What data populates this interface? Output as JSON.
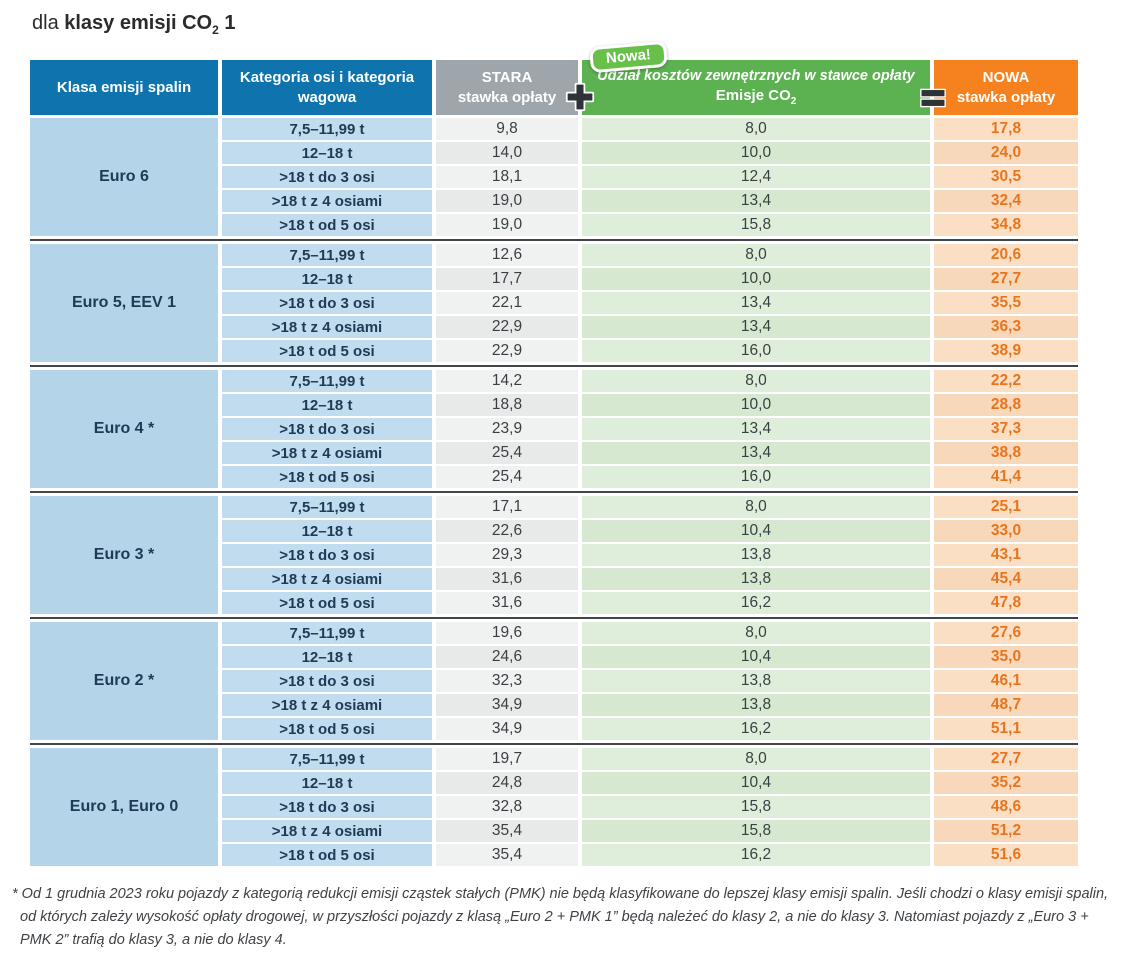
{
  "title": {
    "prefix": "dla ",
    "bold_text": "klasy emisji CO",
    "subscript": "2",
    "bold_suffix": " 1"
  },
  "header": {
    "col_class": "Klasa emisji spalin",
    "col_category": "Kategoria osi i kategoria wagowa",
    "col_old_line1": "STARA",
    "col_old_line2": "stawka opłaty",
    "plus_icon": "plus",
    "badge": "Nowa!",
    "col_share_line1": "Udział kosztów zewnętrznych w stawce opłaty",
    "col_share_line2": "Emisje CO",
    "col_share_sub": "2",
    "equals_icon": "equals",
    "col_new_line1": "NOWA",
    "col_new_line2": "stawka opłaty"
  },
  "colors": {
    "header_blue": "#0f74ad",
    "header_gray": "#9ea5ab",
    "header_green": "#5cb150",
    "header_orange": "#f5821f",
    "badge_green": "#68bf49",
    "new_rate_text": "#e8751d"
  },
  "chart_data": {
    "type": "table",
    "title": "dla klasy emisji CO2 1",
    "columns": [
      "Klasa emisji spalin",
      "Kategoria osi i kategoria wagowa",
      "STARA stawka opłaty",
      "Udział kosztów zewnętrznych w stawce opłaty – Emisje CO2",
      "NOWA stawka opłaty"
    ],
    "groups": [
      {
        "name": "Euro 6",
        "rows": [
          {
            "category": "7,5–11,99 t",
            "old": "9,8",
            "co2": "8,0",
            "new": "17,8"
          },
          {
            "category": "12–18 t",
            "old": "14,0",
            "co2": "10,0",
            "new": "24,0"
          },
          {
            "category": ">18 t do 3 osi",
            "old": "18,1",
            "co2": "12,4",
            "new": "30,5"
          },
          {
            "category": ">18 t z 4 osiami",
            "old": "19,0",
            "co2": "13,4",
            "new": "32,4"
          },
          {
            "category": ">18 t od 5 osi",
            "old": "19,0",
            "co2": "15,8",
            "new": "34,8"
          }
        ]
      },
      {
        "name": "Euro 5, EEV 1",
        "rows": [
          {
            "category": "7,5–11,99 t",
            "old": "12,6",
            "co2": "8,0",
            "new": "20,6"
          },
          {
            "category": "12–18 t",
            "old": "17,7",
            "co2": "10,0",
            "new": "27,7"
          },
          {
            "category": ">18 t do 3 osi",
            "old": "22,1",
            "co2": "13,4",
            "new": "35,5"
          },
          {
            "category": ">18 t z 4 osiami",
            "old": "22,9",
            "co2": "13,4",
            "new": "36,3"
          },
          {
            "category": ">18 t od 5 osi",
            "old": "22,9",
            "co2": "16,0",
            "new": "38,9"
          }
        ]
      },
      {
        "name": "Euro 4 *",
        "rows": [
          {
            "category": "7,5–11,99 t",
            "old": "14,2",
            "co2": "8,0",
            "new": "22,2"
          },
          {
            "category": "12–18 t",
            "old": "18,8",
            "co2": "10,0",
            "new": "28,8"
          },
          {
            "category": ">18 t do 3 osi",
            "old": "23,9",
            "co2": "13,4",
            "new": "37,3"
          },
          {
            "category": ">18 t z 4 osiami",
            "old": "25,4",
            "co2": "13,4",
            "new": "38,8"
          },
          {
            "category": ">18 t od 5 osi",
            "old": "25,4",
            "co2": "16,0",
            "new": "41,4"
          }
        ]
      },
      {
        "name": "Euro 3 *",
        "rows": [
          {
            "category": "7,5–11,99 t",
            "old": "17,1",
            "co2": "8,0",
            "new": "25,1"
          },
          {
            "category": "12–18 t",
            "old": "22,6",
            "co2": "10,4",
            "new": "33,0"
          },
          {
            "category": ">18 t do 3 osi",
            "old": "29,3",
            "co2": "13,8",
            "new": "43,1"
          },
          {
            "category": ">18 t z 4 osiami",
            "old": "31,6",
            "co2": "13,8",
            "new": "45,4"
          },
          {
            "category": ">18 t od 5 osi",
            "old": "31,6",
            "co2": "16,2",
            "new": "47,8"
          }
        ]
      },
      {
        "name": "Euro 2 *",
        "rows": [
          {
            "category": "7,5–11,99 t",
            "old": "19,6",
            "co2": "8,0",
            "new": "27,6"
          },
          {
            "category": "12–18 t",
            "old": "24,6",
            "co2": "10,4",
            "new": "35,0"
          },
          {
            "category": ">18 t do 3 osi",
            "old": "32,3",
            "co2": "13,8",
            "new": "46,1"
          },
          {
            "category": ">18 t z 4 osiami",
            "old": "34,9",
            "co2": "13,8",
            "new": "48,7"
          },
          {
            "category": ">18 t od 5 osi",
            "old": "34,9",
            "co2": "16,2",
            "new": "51,1"
          }
        ]
      },
      {
        "name": "Euro 1, Euro 0",
        "rows": [
          {
            "category": "7,5–11,99 t",
            "old": "19,7",
            "co2": "8,0",
            "new": "27,7"
          },
          {
            "category": "12–18 t",
            "old": "24,8",
            "co2": "10,4",
            "new": "35,2"
          },
          {
            "category": ">18 t do 3 osi",
            "old": "32,8",
            "co2": "15,8",
            "new": "48,6"
          },
          {
            "category": ">18 t z 4 osiami",
            "old": "35,4",
            "co2": "15,8",
            "new": "51,2"
          },
          {
            "category": ">18 t od 5 osi",
            "old": "35,4",
            "co2": "16,2",
            "new": "51,6"
          }
        ]
      }
    ]
  },
  "footnote": "* Od 1 grudnia 2023 roku pojazdy z kategorią redukcji emisji cząstek stałych (PMK) nie będą klasyfikowane do lepszej klasy emisji spalin. Jeśli chodzi o klasy emisji spalin, od których zależy wysokość opłaty drogowej, w przyszłości pojazdy z klasą „Euro 2 + PMK 1” będą należeć do klasy 2, a nie do klasy 3. Natomiast pojazdy z „Euro 3 + PMK 2” trafią do klasy 3, a nie do klasy 4."
}
